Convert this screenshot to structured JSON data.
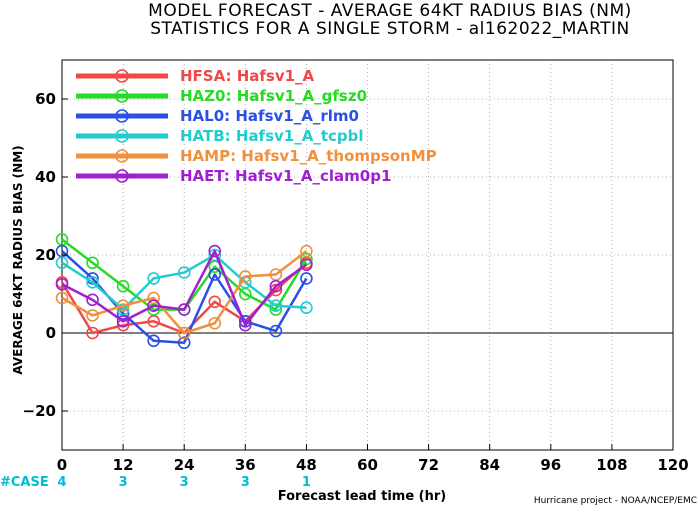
{
  "title_line1": "MODEL FORECAST - AVERAGE 64KT RADIUS BIAS (NM)",
  "title_line2": "STATISTICS FOR A SINGLE STORM - al162022_MARTIN",
  "ylabel": "AVERAGE 64KT RADIUS BIAS (NM)",
  "xlabel": "Forecast lead time (hr)",
  "credit": "Hurricane project - NOAA/NCEP/EMC",
  "case_label": "#CASE",
  "case_color": "#00bcd4",
  "case_label_color": "#00bcd4",
  "chart_data": {
    "type": "line",
    "xlim": [
      0,
      120
    ],
    "ylim": [
      -30,
      70
    ],
    "x_ticks": [
      0,
      12,
      24,
      36,
      48,
      60,
      72,
      84,
      96,
      108,
      120
    ],
    "y_ticks": [
      -20,
      0,
      20,
      40,
      60
    ],
    "x_tick_labels": [
      "0",
      "12",
      "24",
      "36",
      "48",
      "60",
      "72",
      "84",
      "96",
      "108",
      "120"
    ],
    "y_tick_labels": [
      "−20",
      "0",
      "20",
      "40",
      "60"
    ],
    "grid": true,
    "legend_position": "top-left",
    "cases": [
      {
        "x": 0,
        "label": "4"
      },
      {
        "x": 12,
        "label": "3"
      },
      {
        "x": 24,
        "label": "3"
      },
      {
        "x": 36,
        "label": "3"
      },
      {
        "x": 48,
        "label": "1"
      }
    ],
    "series": [
      {
        "name": "HFSA: Hafsv1_A",
        "color": "#f04848",
        "x": [
          0,
          6,
          12,
          18,
          24,
          30,
          36,
          42,
          48
        ],
        "y": [
          13,
          0,
          2,
          3,
          0,
          8,
          3,
          11,
          18
        ]
      },
      {
        "name": "HAZ0: Hafsv1_A_gfsz0",
        "color": "#22dd22",
        "x": [
          0,
          6,
          12,
          18,
          24,
          30,
          36,
          42,
          48
        ],
        "y": [
          24,
          18,
          12,
          6,
          6,
          17,
          10,
          6,
          19
        ]
      },
      {
        "name": "HAL0: Hafsv1_A_rlm0",
        "color": "#2a4fe8",
        "x": [
          0,
          6,
          12,
          18,
          24,
          30,
          36,
          42,
          48
        ],
        "y": [
          21,
          14,
          5,
          -2,
          -2.5,
          15,
          3,
          0.5,
          14
        ]
      },
      {
        "name": "HATB: Hafsv1_A_tcpbl",
        "color": "#22cccc",
        "x": [
          0,
          6,
          12,
          18,
          24,
          30,
          36,
          42,
          48
        ],
        "y": [
          18,
          13,
          6,
          14,
          15.5,
          20,
          13,
          7,
          6.5
        ]
      },
      {
        "name": "HAMP: Hafsv1_A_thompsonMP",
        "color": "#f0903c",
        "x": [
          0,
          6,
          12,
          18,
          24,
          30,
          36,
          42,
          48
        ],
        "y": [
          9,
          4.5,
          7,
          9,
          0,
          2.5,
          14.5,
          15,
          21
        ]
      },
      {
        "name": "HAET: Hafsv1_A_clam0p1",
        "color": "#a020d0",
        "x": [
          0,
          6,
          12,
          18,
          24,
          30,
          36,
          42,
          48
        ],
        "y": [
          12.5,
          8.5,
          3,
          7,
          6,
          21,
          2,
          12,
          17.5
        ]
      }
    ]
  }
}
